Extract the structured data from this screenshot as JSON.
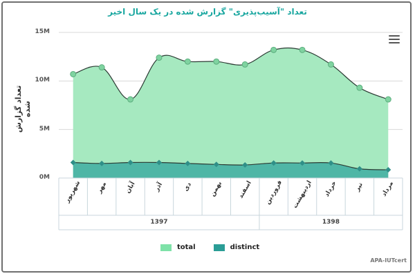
{
  "chart": {
    "title": "تعداد \"آسیب‌پذیری\" گزارش شده در یک سال اخیر",
    "credit": "APA-IUTcert",
    "menu_icon": "hamburger-menu-icon"
  },
  "legend": [
    {
      "label": "total",
      "color": "#7ee2a8"
    },
    {
      "label": "distinct",
      "color": "#2a9d96"
    }
  ],
  "yaxis": {
    "title": "تعداد گزارش شده",
    "ticks": [
      "0M",
      "5M",
      "10M",
      "15M"
    ]
  },
  "xaxis": {
    "categories": [
      "شهریور",
      "مهر",
      "آبان",
      "آذر",
      "دی",
      "بهمن",
      "اسفند",
      "فروردین",
      "اردیبهشت",
      "خرداد",
      "تیر",
      "مرداد"
    ],
    "groups": [
      {
        "label": "1397",
        "count": 7
      },
      {
        "label": "1398",
        "count": 5
      }
    ]
  },
  "chart_data": {
    "type": "area",
    "title": "تعداد \"آسیب‌پذیری\" گزارش شده در یک سال اخیر",
    "xlabel": "",
    "ylabel": "تعداد گزارش شده",
    "categories": [
      "شهریور",
      "مهر",
      "آبان",
      "آذر",
      "دی",
      "بهمن",
      "اسفند",
      "فروردین",
      "اردیبهشت",
      "خرداد",
      "تیر",
      "مرداد"
    ],
    "category_groups": [
      {
        "label": "1397",
        "categories": [
          "شهریور",
          "مهر",
          "آبان",
          "آذر",
          "دی",
          "بهمن",
          "اسفند"
        ]
      },
      {
        "label": "1398",
        "categories": [
          "فروردین",
          "اردیبهشت",
          "خرداد",
          "تیر",
          "مرداد"
        ]
      }
    ],
    "series": [
      {
        "name": "total",
        "color": "#7ee2a8",
        "values": [
          10.7,
          11.4,
          8.1,
          12.4,
          12.0,
          12.0,
          11.7,
          13.2,
          13.2,
          11.7,
          9.3,
          8.1
        ]
      },
      {
        "name": "distinct",
        "color": "#2a9d96",
        "values": [
          1.6,
          1.5,
          1.6,
          1.6,
          1.5,
          1.4,
          1.35,
          1.55,
          1.55,
          1.55,
          0.95,
          0.85
        ]
      }
    ],
    "units": "M",
    "ylim": [
      0,
      15
    ],
    "yticks": [
      0,
      5,
      10,
      15
    ],
    "grid": true,
    "legend_position": "bottom"
  }
}
